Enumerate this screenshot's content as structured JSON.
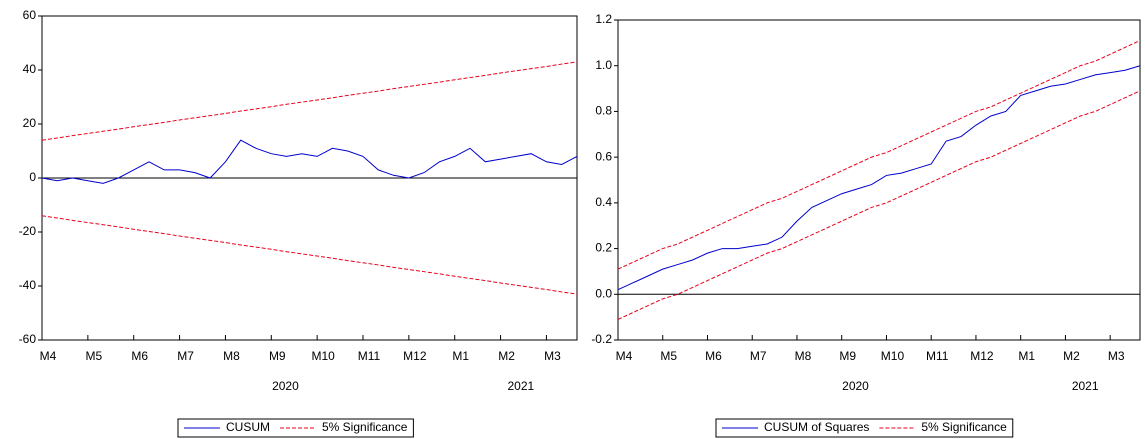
{
  "chart_data": [
    {
      "type": "line",
      "categories": [
        "M4",
        null,
        null,
        "M5",
        null,
        null,
        "M6",
        null,
        null,
        "M7",
        null,
        null,
        "M8",
        null,
        null,
        "M9",
        null,
        null,
        "M10",
        null,
        null,
        "M11",
        null,
        null,
        "M12",
        null,
        null,
        "M1",
        null,
        null,
        "M2",
        null,
        null,
        "M3",
        null,
        null
      ],
      "year_labels": [
        "2020",
        "2021"
      ],
      "ylim": [
        -60,
        60
      ],
      "yticks": [
        -60,
        -40,
        -20,
        0,
        20,
        40,
        60
      ],
      "reference_line": 0,
      "legend": "bottom",
      "series": [
        {
          "name": "CUSUM",
          "color": "#0000cc",
          "dash": false,
          "values": [
            0,
            -1,
            0,
            -1,
            -2,
            0,
            3,
            6,
            3,
            3,
            2,
            0,
            6,
            14,
            11,
            9,
            8,
            9,
            8,
            11,
            10,
            8,
            3,
            1,
            0,
            2,
            6,
            8,
            11,
            6,
            7,
            8,
            9,
            6,
            5,
            8
          ]
        },
        {
          "name": "5% Significance",
          "color": "#e8001c",
          "dash": true,
          "values": [
            14,
            14.8,
            15.7,
            16.5,
            17.3,
            18.1,
            19.0,
            19.8,
            20.6,
            21.5,
            22.3,
            23.1,
            23.9,
            24.8,
            25.6,
            26.4,
            27.3,
            28.1,
            28.9,
            29.7,
            30.6,
            31.4,
            32.2,
            33.1,
            33.9,
            34.7,
            35.5,
            36.4,
            37.2,
            38.0,
            38.9,
            39.7,
            40.5,
            41.3,
            42.2,
            43.0
          ],
          "lower": [
            -14,
            -14.8,
            -15.7,
            -16.5,
            -17.3,
            -18.1,
            -19.0,
            -19.8,
            -20.6,
            -21.5,
            -22.3,
            -23.1,
            -23.9,
            -24.8,
            -25.6,
            -26.4,
            -27.3,
            -28.1,
            -28.9,
            -29.7,
            -30.6,
            -31.4,
            -32.2,
            -33.1,
            -33.9,
            -34.7,
            -35.5,
            -36.4,
            -37.2,
            -38.0,
            -38.9,
            -39.7,
            -40.5,
            -41.3,
            -42.2,
            -43.0
          ]
        }
      ]
    },
    {
      "type": "line",
      "categories": [
        "M4",
        null,
        null,
        "M5",
        null,
        null,
        "M6",
        null,
        null,
        "M7",
        null,
        null,
        "M8",
        null,
        null,
        "M9",
        null,
        null,
        "M10",
        null,
        null,
        "M11",
        null,
        null,
        "M12",
        null,
        null,
        "M1",
        null,
        null,
        "M2",
        null,
        null,
        "M3",
        null,
        null
      ],
      "year_labels": [
        "2020",
        "2021"
      ],
      "ylim": [
        -0.2,
        1.2
      ],
      "yticks": [
        -0.2,
        {
          "value": 0,
          "label": "0.0"
        },
        0.2,
        0.4,
        0.6,
        0.8,
        {
          "value": 1,
          "label": "1.0"
        },
        1.2
      ],
      "reference_line": 0,
      "legend": "bottom",
      "series": [
        {
          "name": "CUSUM of Squares",
          "color": "#0000cc",
          "dash": false,
          "values": [
            0.02,
            0.05,
            0.08,
            0.11,
            0.13,
            0.15,
            0.18,
            0.2,
            0.2,
            0.21,
            0.22,
            0.25,
            0.32,
            0.38,
            0.41,
            0.44,
            0.46,
            0.48,
            0.52,
            0.53,
            0.55,
            0.57,
            0.67,
            0.69,
            0.74,
            0.78,
            0.8,
            0.87,
            0.89,
            0.91,
            0.92,
            0.94,
            0.96,
            0.97,
            0.98,
            1.0
          ]
        },
        {
          "name": "5% Significance",
          "color": "#e8001c",
          "dash": true,
          "values": [
            0.11,
            0.14,
            0.17,
            0.2,
            0.22,
            0.25,
            0.28,
            0.31,
            0.34,
            0.37,
            0.4,
            0.42,
            0.45,
            0.48,
            0.51,
            0.54,
            0.57,
            0.6,
            0.62,
            0.65,
            0.68,
            0.71,
            0.74,
            0.77,
            0.8,
            0.82,
            0.85,
            0.88,
            0.91,
            0.94,
            0.97,
            1.0,
            1.02,
            1.05,
            1.08,
            1.11
          ],
          "lower": [
            -0.11,
            -0.08,
            -0.05,
            -0.02,
            0.0,
            0.03,
            0.06,
            0.09,
            0.12,
            0.15,
            0.18,
            0.2,
            0.23,
            0.26,
            0.29,
            0.32,
            0.35,
            0.38,
            0.4,
            0.43,
            0.46,
            0.49,
            0.52,
            0.55,
            0.58,
            0.6,
            0.63,
            0.66,
            0.69,
            0.72,
            0.75,
            0.78,
            0.8,
            0.83,
            0.86,
            0.89
          ]
        }
      ]
    }
  ]
}
